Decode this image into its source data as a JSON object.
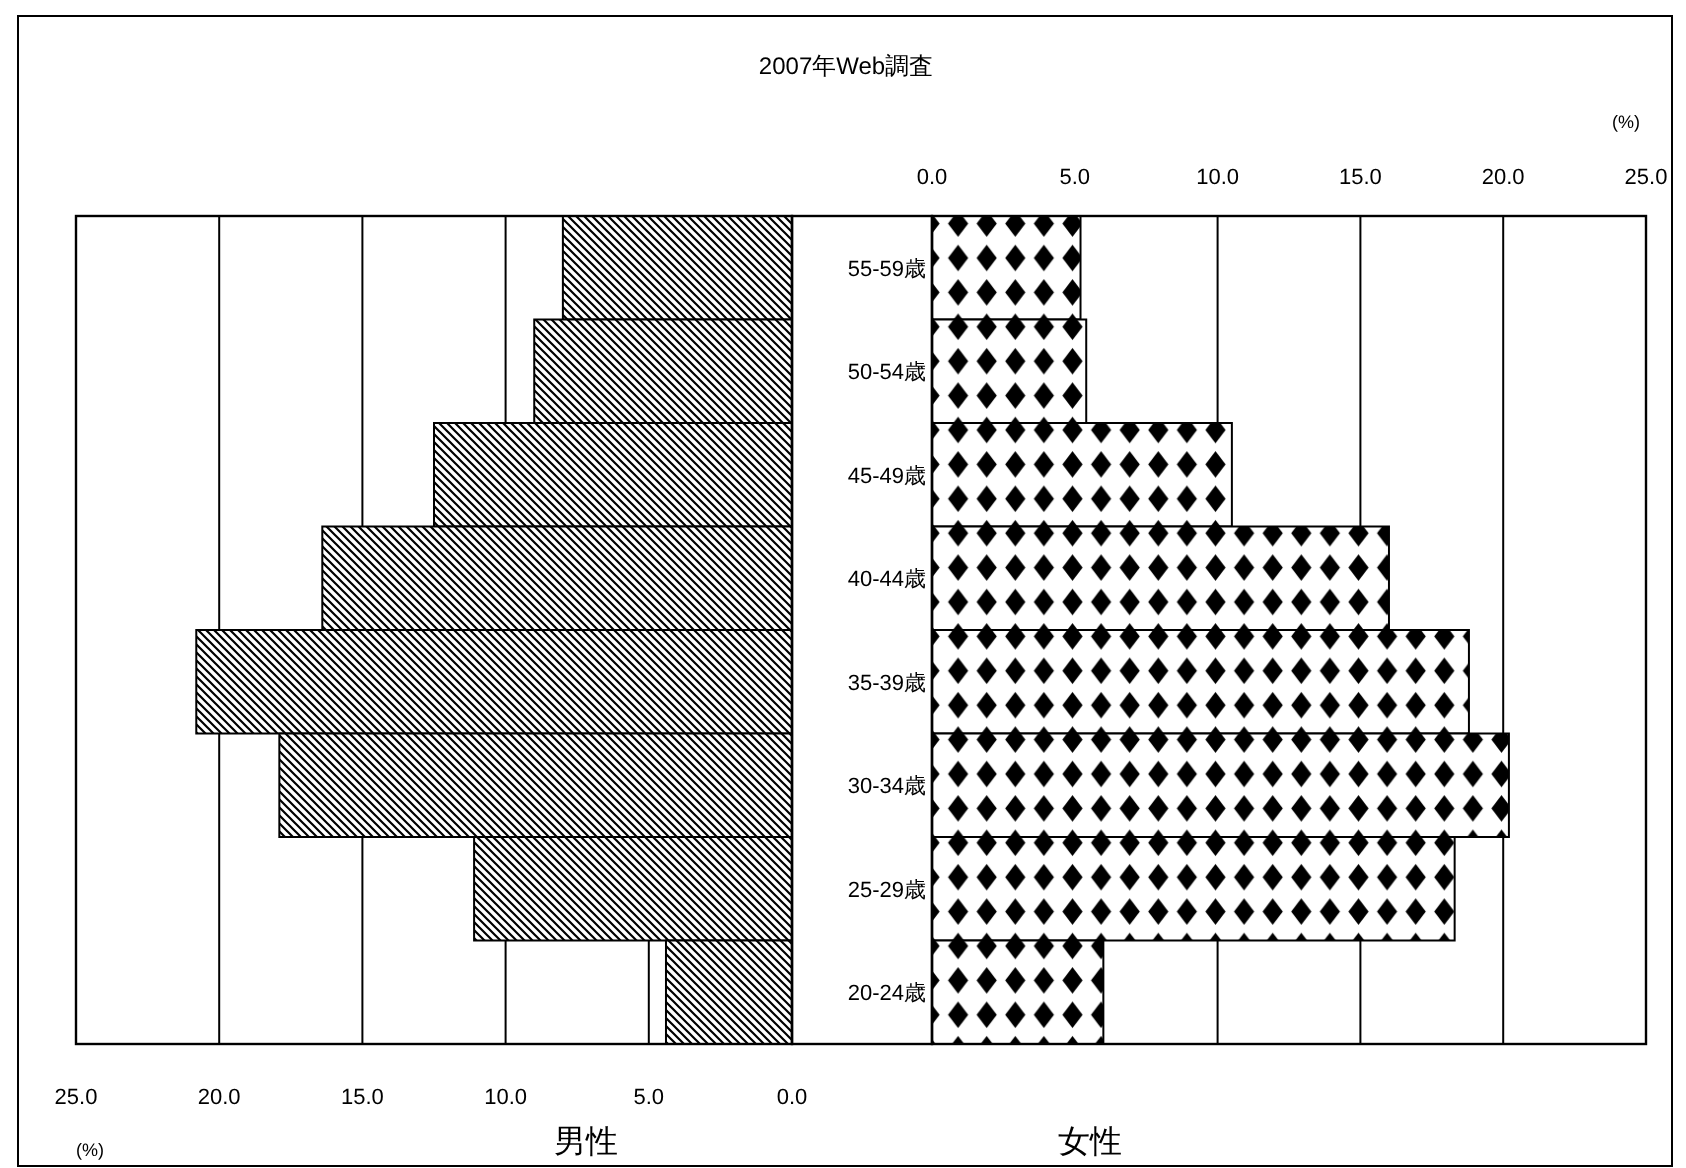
{
  "chart_data": [
    {
      "type": "bar",
      "orientation": "horizontal",
      "title": "2007年Web調査",
      "xlabel": "男性",
      "categories": [
        null,
        null,
        null,
        null,
        null,
        null,
        null,
        null
      ],
      "values": [
        8.0,
        9.0,
        12.5,
        16.4,
        20.8,
        17.9,
        11.1,
        4.4
      ],
      "color": "#000000",
      "xlim": [
        25,
        0
      ],
      "xticks": [
        {
          "value": 25,
          "label": "25.0"
        },
        {
          "value": 20,
          "label": "20.0"
        },
        {
          "value": 15,
          "label": "15.0"
        },
        {
          "value": 10,
          "label": "10.0"
        },
        {
          "value": 5,
          "label": "5.0"
        },
        {
          "value": 0,
          "label": "0.0"
        }
      ],
      "grid": "x",
      "tick_labels": "x",
      "annotations": [
        "(%)"
      ]
    },
    {
      "type": "bar",
      "orientation": "horizontal",
      "xlabel": "女性",
      "categories": [
        "55-59歳",
        "50-54歳",
        "45-49歳",
        "40-44歳",
        "35-39歳",
        "30-34歳",
        "25-29歳",
        "20-24歳"
      ],
      "values": [
        5.2,
        5.4,
        10.5,
        16.0,
        18.8,
        20.2,
        18.3,
        6.0
      ],
      "color": "#000000",
      "xlim": [
        0,
        25
      ],
      "xticks": [
        {
          "value": 0,
          "label": "0.0"
        },
        {
          "value": 5,
          "label": "5.0"
        },
        {
          "value": 10,
          "label": "10.0"
        },
        {
          "value": 15,
          "label": "15.0"
        },
        {
          "value": 20,
          "label": "20.0"
        },
        {
          "value": 25,
          "label": "25.0"
        }
      ],
      "grid": "x",
      "annotations": [
        "(%)"
      ]
    }
  ]
}
